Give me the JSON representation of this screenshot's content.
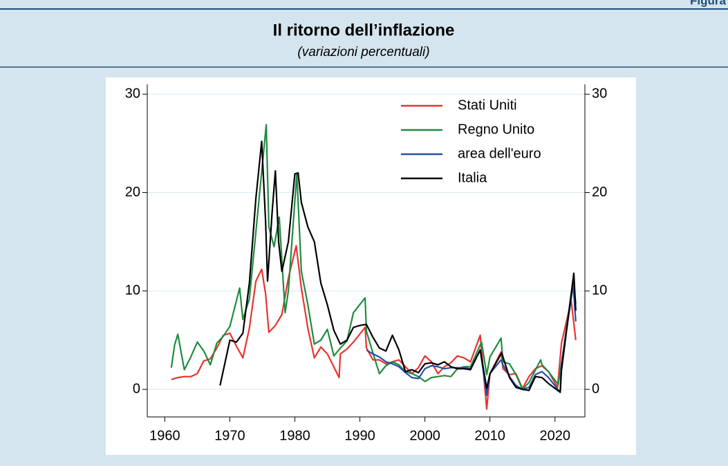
{
  "label": "Figura",
  "chart_data": {
    "type": "line",
    "title": "Il ritorno dell’inflazione",
    "subtitle": "(variazioni percentuali)",
    "xlim": [
      1957.3,
      2024.6
    ],
    "xticks": [
      1960,
      1970,
      1980,
      1990,
      2000,
      2010,
      2020
    ],
    "ylim": [
      -2.8,
      31
    ],
    "yticks": [
      0,
      10,
      20,
      30
    ],
    "y2lim": [
      -2.8,
      31
    ],
    "y2ticks": [
      0,
      10,
      20,
      30
    ],
    "grid": true,
    "legend": "top-right",
    "series": [
      {
        "name": "Stati Uniti",
        "color": "#e8322f",
        "x": [
          1961,
          1962,
          1963,
          1964,
          1965,
          1966,
          1967,
          1968,
          1969,
          1970,
          1971,
          1972,
          1973,
          1974,
          1974.9,
          1975.5,
          1976,
          1977,
          1978,
          1979,
          1980.2,
          1981,
          1982,
          1983,
          1984,
          1985,
          1986.8,
          1987,
          1988,
          1989,
          1990.8,
          1991,
          1992,
          1993,
          1994,
          1995,
          1996,
          1997,
          1998,
          1999,
          2000,
          2001,
          2002,
          2003,
          2004,
          2005,
          2006,
          2007,
          2008.5,
          2009.5,
          2010,
          2011.7,
          2012,
          2013,
          2014,
          2015,
          2016,
          2017,
          2018,
          2019,
          2020.4,
          2021,
          2022.5,
          2023.2
        ],
        "values": [
          1.0,
          1.2,
          1.3,
          1.3,
          1.6,
          2.9,
          3.1,
          4.2,
          5.5,
          5.7,
          4.4,
          3.2,
          6.2,
          11.0,
          12.2,
          9.7,
          5.8,
          6.5,
          7.6,
          11.3,
          14.6,
          10.3,
          6.2,
          3.2,
          4.3,
          3.6,
          1.2,
          3.6,
          4.1,
          4.8,
          6.3,
          4.2,
          3.0,
          3.0,
          2.6,
          2.8,
          3.0,
          2.3,
          1.6,
          2.2,
          3.4,
          2.8,
          1.6,
          2.3,
          2.7,
          3.4,
          3.2,
          2.8,
          5.5,
          -2.0,
          1.6,
          3.8,
          2.1,
          1.5,
          1.6,
          0.1,
          1.3,
          2.1,
          2.4,
          1.8,
          0.2,
          4.7,
          9.0,
          5.0
        ]
      },
      {
        "name": "Regno Unito",
        "color": "#1f8b3f",
        "x": [
          1961,
          1961.5,
          1962,
          1963,
          1964,
          1965,
          1966,
          1967,
          1968,
          1969,
          1970,
          1971.5,
          1972,
          1973,
          1974,
          1975.6,
          1976,
          1976.8,
          1977.6,
          1978.5,
          1979,
          1980.3,
          1981,
          1982,
          1983,
          1984,
          1985,
          1986,
          1987,
          1988,
          1989,
          1990.8,
          1991,
          1992,
          1993,
          1994,
          1995,
          1996,
          1997,
          1998,
          1999,
          2000,
          2001,
          2002,
          2003,
          2004,
          2005,
          2006,
          2007,
          2008.7,
          2009.5,
          2010,
          2011.7,
          2012,
          2013,
          2014,
          2015,
          2016,
          2017.8,
          2018,
          2019,
          2020.5,
          2021,
          2022.8,
          2023.2
        ],
        "values": [
          2.2,
          4.5,
          5.6,
          2.0,
          3.3,
          4.8,
          3.9,
          2.5,
          4.7,
          5.4,
          6.4,
          10.3,
          7.1,
          9.2,
          16.0,
          26.9,
          16.5,
          14.5,
          17.5,
          7.8,
          10.0,
          21.9,
          12.0,
          8.6,
          4.6,
          5.0,
          6.1,
          3.4,
          4.2,
          4.9,
          7.8,
          9.3,
          5.9,
          3.7,
          1.6,
          2.4,
          2.8,
          2.5,
          1.8,
          1.6,
          1.3,
          0.8,
          1.2,
          1.3,
          1.4,
          1.3,
          2.1,
          2.3,
          2.3,
          4.8,
          1.5,
          3.3,
          5.2,
          2.8,
          2.6,
          1.5,
          0.0,
          0.7,
          3.0,
          2.5,
          1.8,
          0.5,
          2.6,
          11.1,
          8.7
        ]
      },
      {
        "name": "area dell'euro",
        "color": "#2350a8",
        "x": [
          1991,
          1992,
          1993,
          1994,
          1995,
          1996,
          1997,
          1998,
          1999,
          2000,
          2001,
          2002,
          2003,
          2004,
          2005,
          2006,
          2007,
          2008.5,
          2009.5,
          2010,
          2011.7,
          2012,
          2013,
          2014,
          2015,
          2016,
          2017,
          2018,
          2019,
          2020.8,
          2021,
          2022.8,
          2023.2
        ],
        "values": [
          4.0,
          3.6,
          3.3,
          2.8,
          2.6,
          2.3,
          1.7,
          1.2,
          1.1,
          2.1,
          2.4,
          2.3,
          2.1,
          2.2,
          2.2,
          2.2,
          2.1,
          4.0,
          -0.6,
          1.6,
          3.0,
          2.5,
          1.3,
          0.4,
          0.0,
          0.2,
          1.5,
          1.8,
          1.2,
          -0.3,
          2.6,
          10.6,
          6.9
        ]
      },
      {
        "name": "Italia",
        "color": "#000000",
        "x": [
          1968.5,
          1970,
          1971,
          1972,
          1973,
          1974,
          1974.9,
          1975.5,
          1975.8,
          1976.5,
          1977,
          1977.5,
          1978,
          1979,
          1980,
          1980.5,
          1981,
          1982,
          1983,
          1984,
          1985,
          1986,
          1987,
          1988,
          1989,
          1990,
          1991,
          1992,
          1993,
          1994,
          1995,
          1996,
          1997,
          1998,
          1999,
          2000,
          2001,
          2002,
          2003,
          2004,
          2005,
          2006,
          2007,
          2008.5,
          2009.5,
          2010,
          2011.8,
          2012,
          2013,
          2014,
          2015,
          2016,
          2017,
          2018,
          2019,
          2020.8,
          2021,
          2022.9,
          2023.2
        ],
        "values": [
          0.4,
          5.0,
          4.8,
          5.7,
          10.8,
          19.4,
          25.2,
          17.0,
          11.0,
          18.0,
          22.2,
          15.0,
          12.0,
          15.0,
          21.9,
          22.0,
          19.0,
          16.5,
          15.0,
          10.8,
          8.6,
          6.0,
          4.6,
          5.0,
          6.3,
          6.5,
          6.6,
          5.3,
          4.2,
          3.9,
          5.5,
          4.0,
          1.8,
          2.0,
          1.7,
          2.6,
          2.7,
          2.5,
          2.8,
          2.3,
          2.1,
          2.1,
          2.0,
          4.0,
          0.1,
          1.6,
          3.7,
          3.3,
          1.2,
          0.2,
          0.0,
          -0.1,
          1.3,
          1.2,
          0.6,
          -0.3,
          1.9,
          11.8,
          8.0
        ]
      }
    ]
  }
}
